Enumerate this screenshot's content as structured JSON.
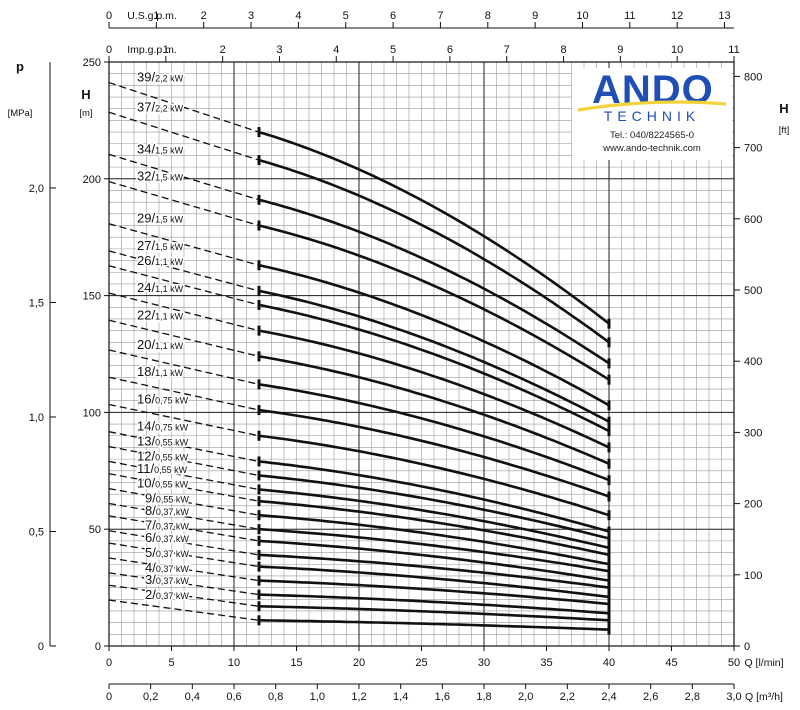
{
  "chart_data": {
    "type": "line",
    "top_axis_usgpm": {
      "label": "U.S.g.p.m.",
      "ticks": [
        "0",
        "1",
        "2",
        "3",
        "4",
        "5",
        "6",
        "7",
        "8",
        "9",
        "10",
        "11",
        "12",
        "13"
      ]
    },
    "top_axis_impgpm": {
      "label": "Imp.g.p.m.",
      "ticks": [
        "0",
        "1",
        "2",
        "3",
        "4",
        "5",
        "6",
        "7",
        "8",
        "9",
        "10",
        "11"
      ]
    },
    "x_axis_lmin": {
      "label": "Q [l/min]",
      "ticks": [
        "0",
        "5",
        "10",
        "15",
        "20",
        "25",
        "30",
        "35",
        "40",
        "45",
        "50"
      ],
      "range": [
        0,
        50
      ]
    },
    "x_axis_m3h": {
      "label": "Q [m³/h]",
      "ticks": [
        "0",
        "0,2",
        "0,4",
        "0,6",
        "0,8",
        "1,0",
        "1,2",
        "1,4",
        "1,6",
        "1,8",
        "2,0",
        "2,2",
        "2,4",
        "2,6",
        "2,8",
        "3,0"
      ]
    },
    "y_axis_m": {
      "label": "H",
      "unit": "[m]",
      "ticks": [
        "0",
        "50",
        "100",
        "150",
        "200",
        "250"
      ],
      "range": [
        0,
        250
      ]
    },
    "y_axis_mpa": {
      "label": "p",
      "unit": "[MPa]",
      "ticks": [
        "0",
        "0,5",
        "1,0",
        "1,5",
        "2,0"
      ]
    },
    "y_axis_ft": {
      "label": "H",
      "unit": "[ft]",
      "ticks": [
        "0",
        "100",
        "200",
        "300",
        "400",
        "500",
        "600",
        "700",
        "800"
      ]
    },
    "operating_range_lmin": [
      12,
      40
    ],
    "series": [
      {
        "stages": "39/",
        "power": "2,2 kW",
        "q_min_head_m": 220,
        "q_max_head_m": 138
      },
      {
        "stages": "37/",
        "power": "2,2 kW",
        "q_min_head_m": 208,
        "q_max_head_m": 130
      },
      {
        "stages": "34/",
        "power": "1,5 kW",
        "q_min_head_m": 191,
        "q_max_head_m": 121
      },
      {
        "stages": "32/",
        "power": "1,5 kW",
        "q_min_head_m": 180,
        "q_max_head_m": 114
      },
      {
        "stages": "29/",
        "power": "1,5 kW",
        "q_min_head_m": 163,
        "q_max_head_m": 103
      },
      {
        "stages": "27/",
        "power": "1,5 kW",
        "q_min_head_m": 152,
        "q_max_head_m": 96
      },
      {
        "stages": "26/",
        "power": "1,1 kW",
        "q_min_head_m": 146,
        "q_max_head_m": 92
      },
      {
        "stages": "24/",
        "power": "1,1 kW",
        "q_min_head_m": 135,
        "q_max_head_m": 85
      },
      {
        "stages": "22/",
        "power": "1,1 kW",
        "q_min_head_m": 124,
        "q_max_head_m": 78
      },
      {
        "stages": "20/",
        "power": "1,1 kW",
        "q_min_head_m": 112,
        "q_max_head_m": 71
      },
      {
        "stages": "18/",
        "power": "1,1 kW",
        "q_min_head_m": 101,
        "q_max_head_m": 64
      },
      {
        "stages": "16/",
        "power": "0,75 kW",
        "q_min_head_m": 90,
        "q_max_head_m": 56
      },
      {
        "stages": "14/",
        "power": "0,75 kW",
        "q_min_head_m": 79,
        "q_max_head_m": 49
      },
      {
        "stages": "13/",
        "power": "0,55 kW",
        "q_min_head_m": 73,
        "q_max_head_m": 46
      },
      {
        "stages": "12/",
        "power": "0,55 kW",
        "q_min_head_m": 67,
        "q_max_head_m": 42
      },
      {
        "stages": "11/",
        "power": "0,55 kW",
        "q_min_head_m": 62,
        "q_max_head_m": 39
      },
      {
        "stages": "10/",
        "power": "0,55 kW",
        "q_min_head_m": 56,
        "q_max_head_m": 35
      },
      {
        "stages": "9/",
        "power": "0,55 kW",
        "q_min_head_m": 50,
        "q_max_head_m": 32
      },
      {
        "stages": "8/",
        "power": "0,37 kW",
        "q_min_head_m": 45,
        "q_max_head_m": 28
      },
      {
        "stages": "7/",
        "power": "0,37 kW",
        "q_min_head_m": 39,
        "q_max_head_m": 25
      },
      {
        "stages": "6/",
        "power": "0,37 kW",
        "q_min_head_m": 34,
        "q_max_head_m": 21
      },
      {
        "stages": "5/",
        "power": "0,37 kW",
        "q_min_head_m": 28,
        "q_max_head_m": 18
      },
      {
        "stages": "4/",
        "power": "0,37 kW",
        "q_min_head_m": 22,
        "q_max_head_m": 14
      },
      {
        "stages": "3/",
        "power": "0,37 kW",
        "q_min_head_m": 17,
        "q_max_head_m": 11
      },
      {
        "stages": "2/",
        "power": "0,37 kW",
        "q_min_head_m": 11,
        "q_max_head_m": 7
      }
    ]
  },
  "logo": {
    "brand": "ANDO",
    "sub": "TECHNIK",
    "phone": "Tel.: 040/8224565-0",
    "web": "www.ando-technik.com",
    "brand_color": "#1f4fb4",
    "swoosh_color": "#f2d23a"
  }
}
